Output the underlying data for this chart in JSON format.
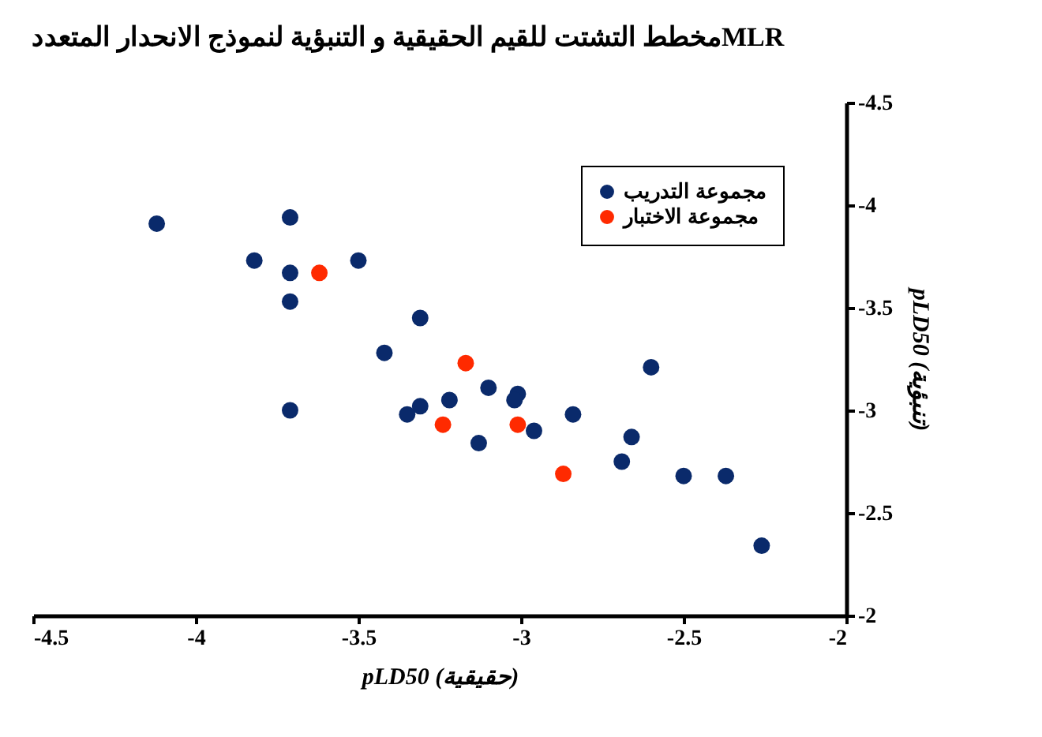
{
  "chart_data": {
    "type": "scatter",
    "title": "مخطط التشتت للقيم الحقيقية و التنبؤية لنموذج الانحدار المتعددMLR",
    "xlabel": "pLD50 (حقيقية)",
    "ylabel": "pLD50 (تنبؤية)",
    "xlim": [
      -4.5,
      -2
    ],
    "xticks": [
      -4.5,
      -4,
      -3.5,
      -3,
      -2.5,
      -2
    ],
    "ylim": [
      -2,
      -4.5
    ],
    "yticks": [
      -4.5,
      -4,
      -3.5,
      -3,
      -2.5,
      -2
    ],
    "grid": false,
    "legend": "top right",
    "marker": "circle",
    "series": [
      {
        "name": "مجموعة التدريب",
        "color": "#0a2a6b",
        "x": [
          -4.12,
          -3.71,
          -3.82,
          -3.71,
          -3.5,
          -3.71,
          -3.31,
          -3.42,
          -3.1,
          -3.22,
          -3.31,
          -3.35,
          -3.13,
          -3.71,
          -3.01,
          -3.02,
          -2.96,
          -2.84,
          -2.6,
          -2.66,
          -2.69,
          -2.5,
          -2.37,
          -2.26
        ],
        "values": [
          -3.91,
          -3.94,
          -3.73,
          -3.67,
          -3.73,
          -3.53,
          -3.45,
          -3.28,
          -3.11,
          -3.05,
          -3.02,
          -2.98,
          -2.84,
          -3.0,
          -3.08,
          -3.05,
          -2.9,
          -2.98,
          -3.21,
          -2.87,
          -2.75,
          -2.68,
          -2.68,
          -2.34
        ]
      },
      {
        "name": "مجموعة الاختبار",
        "color": "#ff2a00",
        "x": [
          -3.62,
          -3.17,
          -3.24,
          -3.01,
          -2.87
        ],
        "values": [
          -3.67,
          -3.23,
          -2.93,
          -2.93,
          -2.69
        ]
      }
    ]
  }
}
